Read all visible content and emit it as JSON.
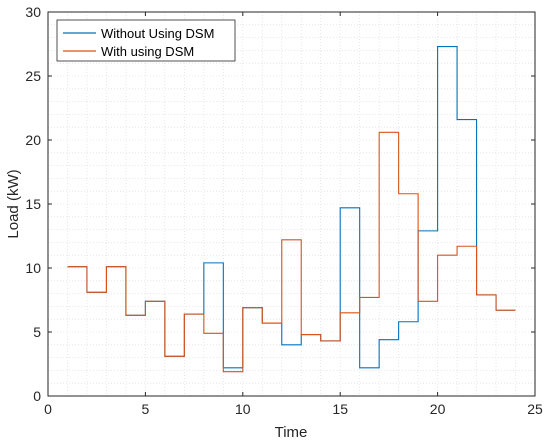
{
  "chart_data": {
    "type": "line",
    "step": true,
    "title": "",
    "xlabel": "Time",
    "ylabel": "Load (kW)",
    "xlim": [
      0,
      25
    ],
    "ylim": [
      0,
      30
    ],
    "xticks": [
      0,
      5,
      10,
      15,
      20,
      25
    ],
    "yticks": [
      0,
      5,
      10,
      15,
      20,
      25,
      30
    ],
    "grid": "on (minor dotted)",
    "legend_position": "top-left",
    "x": [
      1,
      2,
      3,
      4,
      5,
      6,
      7,
      8,
      9,
      10,
      11,
      12,
      13,
      14,
      15,
      16,
      17,
      18,
      19,
      20,
      21,
      22,
      23,
      24
    ],
    "series": [
      {
        "name": "Without Using DSM",
        "color": "#0072BD",
        "values": [
          10.1,
          8.1,
          10.1,
          6.3,
          7.4,
          3.1,
          6.4,
          10.4,
          2.2,
          6.9,
          5.7,
          4.0,
          4.8,
          4.3,
          14.7,
          2.2,
          4.4,
          5.8,
          12.9,
          27.3,
          21.6,
          7.9,
          6.7,
          6.7
        ]
      },
      {
        "name": "With using DSM",
        "color": "#D95319",
        "values": [
          10.1,
          8.1,
          10.1,
          6.3,
          7.4,
          3.1,
          6.4,
          4.9,
          1.9,
          6.9,
          5.7,
          12.2,
          4.8,
          4.3,
          6.5,
          7.7,
          20.6,
          15.8,
          7.4,
          11.0,
          11.7,
          7.9,
          6.7,
          6.7
        ]
      }
    ]
  }
}
